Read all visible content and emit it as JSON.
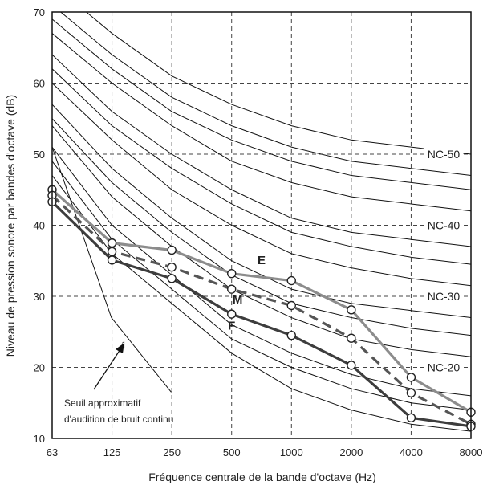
{
  "chart_data": {
    "type": "line",
    "title": "",
    "xlabel": "Fréquence centrale de la bande d'octave (Hz)",
    "ylabel": "Niveau de pression sonore par bandes d'octave (dB)",
    "x": [
      63,
      125,
      250,
      500,
      1000,
      2000,
      4000,
      8000
    ],
    "x_ticks": [
      "63",
      "125",
      "250",
      "500",
      "1000",
      "2000",
      "4000",
      "8000"
    ],
    "x_scale": "log2 (octave bands)",
    "ylim": [
      10,
      70
    ],
    "y_ticks": [
      10,
      20,
      30,
      40,
      50,
      60,
      70
    ],
    "grid": "dashed, at every octave band and every 10 dB",
    "series": [
      {
        "name": "E",
        "color": "#8c8c8c",
        "dash": "solid",
        "values": [
          45,
          37.5,
          36.5,
          33.2,
          32.2,
          28.1,
          18.6,
          13.7
        ]
      },
      {
        "name": "M",
        "color": "#555555",
        "dash": "dashed",
        "values": [
          44.2,
          36.3,
          34.1,
          31,
          28.7,
          24.1,
          16.4,
          12
        ]
      },
      {
        "name": "F",
        "color": "#3d3d3d",
        "dash": "solid",
        "values": [
          43.3,
          35.1,
          32.5,
          27.5,
          24.5,
          20.3,
          12.9,
          11.7
        ]
      }
    ],
    "nc_curves": [
      {
        "label": "NC-20",
        "values": [
          51,
          40,
          33,
          26,
          22,
          19,
          17,
          16
        ]
      },
      {
        "label": "NC-30",
        "values": [
          57,
          48,
          41,
          35,
          31,
          29,
          28,
          27
        ]
      },
      {
        "label": "NC-40",
        "values": [
          64,
          56,
          50,
          45,
          41,
          39,
          38,
          37
        ]
      },
      {
        "label": "NC-50",
        "values": [
          71,
          64,
          58,
          54,
          51,
          49,
          48,
          47
        ]
      }
    ],
    "background_curves": [
      [
        47,
        36,
        29,
        22,
        17,
        14,
        12,
        11
      ],
      [
        49,
        38,
        31,
        24,
        20,
        17,
        15,
        14
      ],
      [
        54,
        44,
        37,
        31,
        27,
        24,
        22.5,
        21.5
      ],
      [
        55,
        46,
        39,
        33,
        29,
        27,
        25.5,
        24.5
      ],
      [
        60,
        52,
        45,
        40,
        36,
        34,
        32.5,
        31.5
      ],
      [
        62,
        54,
        48,
        43,
        39,
        37,
        35.5,
        34.5
      ],
      [
        67,
        60,
        54,
        49,
        46,
        44,
        43,
        42
      ],
      [
        69,
        62,
        56,
        52,
        49,
        47,
        46,
        45
      ],
      [
        74,
        67,
        61,
        57,
        54,
        52,
        51,
        50
      ]
    ],
    "threshold_curve": {
      "x": [
        63,
        125,
        250
      ],
      "values": [
        51,
        27,
        16.5
      ]
    },
    "annotation": {
      "lines": [
        "Seuil approximatif",
        "d'audition de bruit continu"
      ]
    },
    "threshold_marker": {
      "label": "1"
    }
  }
}
